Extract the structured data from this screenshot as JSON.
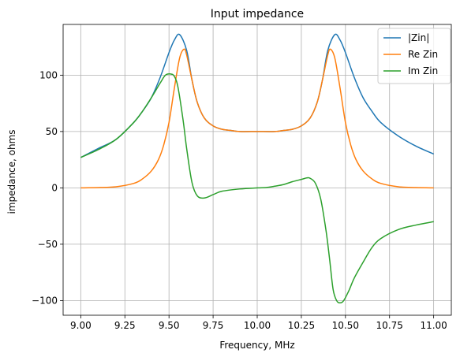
{
  "chart_data": {
    "type": "line",
    "title": "Input impedance",
    "xlabel": "Frequency, MHz",
    "ylabel": "impedance, ohms",
    "xlim": [
      8.9,
      11.1
    ],
    "ylim": [
      -113,
      145
    ],
    "xticks": [
      9.0,
      9.25,
      9.5,
      9.75,
      10.0,
      10.25,
      10.5,
      10.75,
      11.0
    ],
    "xtick_labels": [
      "9.00",
      "9.25",
      "9.50",
      "9.75",
      "10.00",
      "10.25",
      "10.50",
      "10.75",
      "11.00"
    ],
    "yticks": [
      -100,
      -50,
      0,
      50,
      100
    ],
    "ytick_labels": [
      "−100",
      "−50",
      "0",
      "50",
      "100"
    ],
    "grid": true,
    "legend_position": "top-right",
    "series": [
      {
        "name": "|Zin|",
        "color": "#1f77b4",
        "x": [
          9.0,
          9.1,
          9.2,
          9.3,
          9.35,
          9.4,
          9.45,
          9.5,
          9.53,
          9.56,
          9.6,
          9.63,
          9.66,
          9.7,
          9.75,
          9.8,
          9.85,
          9.9,
          10.0,
          10.1,
          10.15,
          10.2,
          10.25,
          10.3,
          10.34,
          10.37,
          10.4,
          10.44,
          10.47,
          10.5,
          10.55,
          10.6,
          10.65,
          10.7,
          10.8,
          10.9,
          11.0
        ],
        "y": [
          27,
          35,
          43,
          58,
          68,
          80,
          98,
          120,
          131,
          136,
          122,
          96,
          76,
          62,
          55,
          52,
          51,
          50,
          50,
          50,
          51,
          52,
          55,
          62,
          76,
          96,
          122,
          136,
          131,
          120,
          98,
          80,
          68,
          58,
          46,
          37,
          30
        ]
      },
      {
        "name": "Re Zin",
        "color": "#ff7f0e",
        "x": [
          9.0,
          9.1,
          9.2,
          9.3,
          9.35,
          9.4,
          9.44,
          9.47,
          9.5,
          9.53,
          9.56,
          9.585,
          9.6,
          9.63,
          9.66,
          9.7,
          9.75,
          9.8,
          9.85,
          9.9,
          10.0,
          10.1,
          10.15,
          10.2,
          10.25,
          10.3,
          10.34,
          10.37,
          10.4,
          10.415,
          10.44,
          10.47,
          10.5,
          10.53,
          10.56,
          10.6,
          10.65,
          10.7,
          10.8,
          10.9,
          11.0
        ],
        "y": [
          0,
          0.3,
          1,
          4,
          8,
          15,
          25,
          38,
          58,
          88,
          115,
          123,
          118,
          96,
          76,
          62,
          55,
          52,
          51,
          50,
          50,
          50,
          51,
          52,
          55,
          62,
          76,
          96,
          118,
          123,
          115,
          88,
          58,
          38,
          25,
          15,
          8,
          4,
          1,
          0.3,
          0
        ]
      },
      {
        "name": "Im Zin",
        "color": "#2ca02c",
        "x": [
          9.0,
          9.1,
          9.2,
          9.3,
          9.35,
          9.4,
          9.45,
          9.48,
          9.51,
          9.53,
          9.55,
          9.58,
          9.6,
          9.63,
          9.66,
          9.7,
          9.75,
          9.8,
          9.9,
          10.0,
          10.05,
          10.1,
          10.15,
          10.2,
          10.25,
          10.28,
          10.3,
          10.33,
          10.36,
          10.39,
          10.41,
          10.43,
          10.45,
          10.47,
          10.49,
          10.52,
          10.55,
          10.6,
          10.65,
          10.7,
          10.8,
          10.9,
          11.0
        ],
        "y": [
          27,
          34,
          43,
          58,
          68,
          80,
          93,
          100,
          101,
          99,
          90,
          60,
          35,
          5,
          -7,
          -9,
          -6,
          -3,
          -1,
          0,
          0.3,
          1.5,
          3,
          5.5,
          7.5,
          8.8,
          8.5,
          4,
          -10,
          -38,
          -63,
          -90,
          -100,
          -102,
          -100,
          -91,
          -80,
          -66,
          -53,
          -45,
          -37,
          -33,
          -30
        ]
      }
    ]
  }
}
